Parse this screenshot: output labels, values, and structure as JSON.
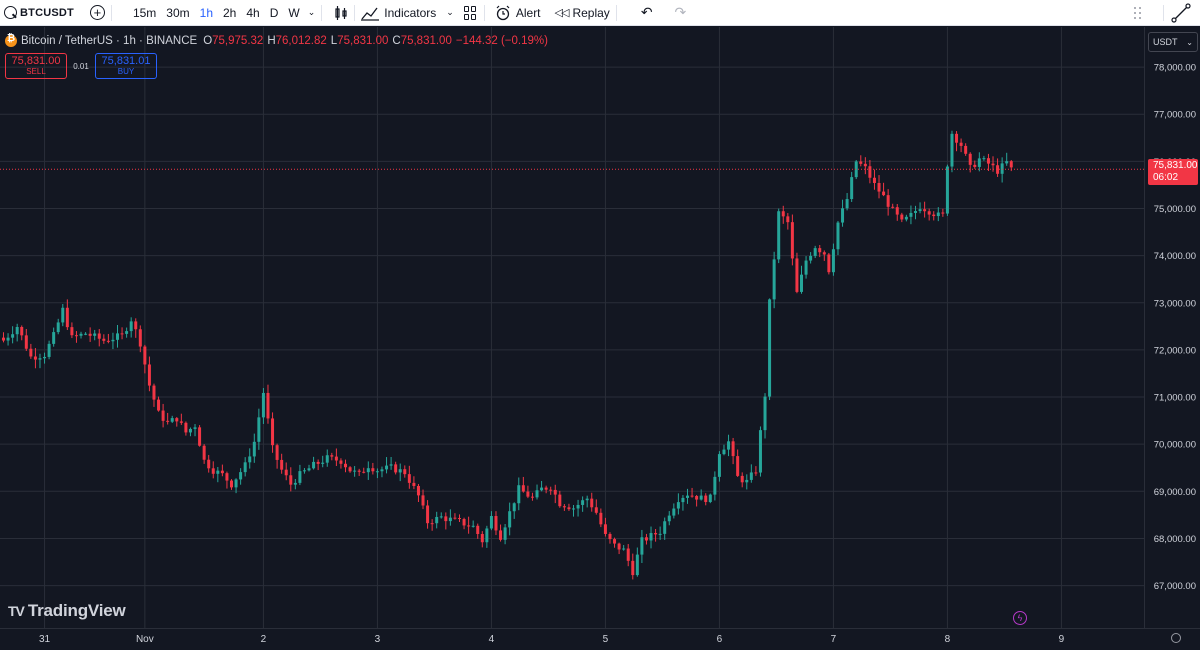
{
  "toolbar": {
    "symbol": "BTCUSDT",
    "intervals": [
      "15m",
      "30m",
      "1h",
      "2h",
      "4h",
      "D",
      "W"
    ],
    "active_interval": "1h",
    "indicators_label": "Indicators",
    "alert_label": "Alert",
    "replay_label": "Replay"
  },
  "legend": {
    "title": "Bitcoin / TetherUS · 1h · BINANCE",
    "o_label": "O",
    "o": "75,975.32",
    "h_label": "H",
    "h": "76,012.82",
    "l_label": "L",
    "l": "75,831.00",
    "c_label": "C",
    "c": "75,831.00",
    "change": "−144.32 (−0.19%)"
  },
  "trade": {
    "sell_price": "75,831.00",
    "sell_label": "SELL",
    "spread": "0.01",
    "buy_price": "75,831.01",
    "buy_label": "BUY"
  },
  "price_axis": {
    "currency": "USDT",
    "last_price": "75,831.00",
    "countdown": "06:02"
  },
  "branding": {
    "logo_text": "TradingView"
  },
  "colors": {
    "up": "#26a69a",
    "down": "#f23645",
    "background": "#131722",
    "grid": "#2a2e39"
  },
  "chart_data": {
    "type": "candlestick",
    "interval": "1h",
    "symbol": "BTCUSDT",
    "exchange": "BINANCE",
    "y_ticks": [
      "67,000.00",
      "68,000.00",
      "69,000.00",
      "70,000.00",
      "71,000.00",
      "72,000.00",
      "73,000.00",
      "74,000.00",
      "75,000.00",
      "76,000.00",
      "77,000.00",
      "78,000.00"
    ],
    "y_tick_values": [
      67000,
      68000,
      69000,
      70000,
      71000,
      72000,
      73000,
      74000,
      75000,
      76000,
      77000,
      78000
    ],
    "ylim": [
      66100,
      78850
    ],
    "x_ticks": [
      "31",
      "Nov",
      "2",
      "3",
      "4",
      "5",
      "6",
      "7",
      "8",
      "9"
    ],
    "x_tick_index": [
      9,
      31,
      57,
      82,
      107,
      132,
      157,
      182,
      207,
      232
    ],
    "x_range": [
      0,
      250
    ],
    "last_price": 75831,
    "anchors": [
      [
        0,
        72200
      ],
      [
        3,
        72500
      ],
      [
        6,
        71850
      ],
      [
        9,
        71900
      ],
      [
        11,
        72300
      ],
      [
        13,
        72850
      ],
      [
        15,
        72250
      ],
      [
        18,
        72350
      ],
      [
        22,
        72200
      ],
      [
        26,
        72300
      ],
      [
        28,
        72650
      ],
      [
        30,
        72150
      ],
      [
        32,
        71250
      ],
      [
        34,
        70650
      ],
      [
        36,
        70450
      ],
      [
        38,
        70550
      ],
      [
        40,
        70250
      ],
      [
        42,
        70400
      ],
      [
        44,
        69650
      ],
      [
        46,
        69450
      ],
      [
        48,
        69350
      ],
      [
        50,
        69150
      ],
      [
        53,
        69550
      ],
      [
        55,
        70050
      ],
      [
        57,
        71100
      ],
      [
        59,
        69900
      ],
      [
        61,
        69450
      ],
      [
        63,
        69150
      ],
      [
        65,
        69350
      ],
      [
        68,
        69550
      ],
      [
        71,
        69700
      ],
      [
        74,
        69650
      ],
      [
        76,
        69450
      ],
      [
        78,
        69350
      ],
      [
        80,
        69550
      ],
      [
        82,
        69450
      ],
      [
        85,
        69500
      ],
      [
        88,
        69400
      ],
      [
        91,
        68900
      ],
      [
        93,
        68350
      ],
      [
        96,
        68450
      ],
      [
        100,
        68350
      ],
      [
        103,
        68250
      ],
      [
        105,
        67950
      ],
      [
        107,
        68450
      ],
      [
        109,
        68050
      ],
      [
        111,
        68550
      ],
      [
        113,
        69050
      ],
      [
        116,
        68850
      ],
      [
        118,
        69050
      ],
      [
        120,
        69100
      ],
      [
        122,
        68750
      ],
      [
        125,
        68650
      ],
      [
        128,
        68850
      ],
      [
        130,
        68550
      ],
      [
        132,
        68050
      ],
      [
        134,
        67850
      ],
      [
        136,
        67750
      ],
      [
        138,
        67300
      ],
      [
        140,
        67950
      ],
      [
        142,
        68050
      ],
      [
        144,
        68150
      ],
      [
        146,
        68550
      ],
      [
        148,
        68850
      ],
      [
        150,
        68950
      ],
      [
        153,
        68850
      ],
      [
        155,
        68850
      ],
      [
        157,
        69850
      ],
      [
        159,
        70050
      ],
      [
        161,
        69300
      ],
      [
        163,
        69200
      ],
      [
        165,
        69450
      ],
      [
        167,
        71050
      ],
      [
        168,
        73000
      ],
      [
        170,
        74900
      ],
      [
        172,
        74700
      ],
      [
        173,
        73900
      ],
      [
        174,
        73200
      ],
      [
        176,
        73900
      ],
      [
        178,
        74200
      ],
      [
        180,
        74050
      ],
      [
        181,
        73700
      ],
      [
        183,
        74700
      ],
      [
        185,
        75200
      ],
      [
        187,
        76000
      ],
      [
        189,
        75850
      ],
      [
        191,
        75500
      ],
      [
        193,
        75250
      ],
      [
        195,
        74950
      ],
      [
        197,
        74700
      ],
      [
        199,
        74850
      ],
      [
        201,
        75050
      ],
      [
        203,
        74950
      ],
      [
        205,
        74850
      ],
      [
        206,
        74850
      ],
      [
        207,
        75950
      ],
      [
        208,
        76600
      ],
      [
        210,
        76350
      ],
      [
        212,
        75850
      ],
      [
        214,
        76050
      ],
      [
        216,
        75950
      ],
      [
        218,
        75800
      ],
      [
        220,
        75975
      ],
      [
        221,
        75831
      ]
    ]
  }
}
